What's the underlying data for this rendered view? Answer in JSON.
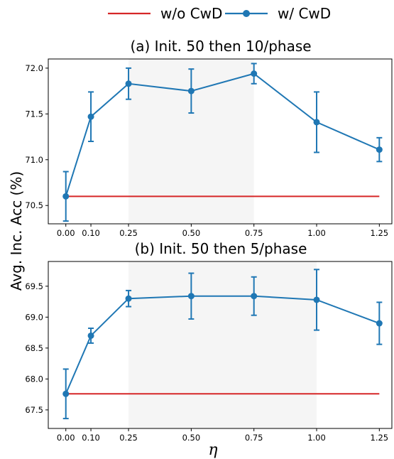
{
  "legend": {
    "items": [
      {
        "label": "w/o CwD",
        "color": "#d62728",
        "marker": false
      },
      {
        "label": "w/ CwD",
        "color": "#1f77b4",
        "marker": true
      }
    ],
    "placement": "top-center"
  },
  "ylabel": "Avg. Inc. Acc (%)",
  "xlabel": "η",
  "colors": {
    "with": "#1f77b4",
    "without": "#d62728",
    "shade": "#f5f5f5"
  },
  "chart_data": [
    {
      "type": "line",
      "title": "(a) Init. 50 then 10/phase",
      "x_ticks": [
        0.0,
        0.1,
        0.25,
        0.5,
        0.75,
        1.0,
        1.25
      ],
      "x_tick_labels": [
        "0.00",
        "0.10",
        "0.25",
        "0.50",
        "0.75",
        "1.00",
        "1.25"
      ],
      "y_ticks": [
        70.5,
        71.0,
        71.5,
        72.0
      ],
      "y_tick_labels": [
        "70.5",
        "71.0",
        "71.5",
        "72.0"
      ],
      "xlim": [
        -0.07,
        1.3
      ],
      "ylim": [
        70.3,
        72.1
      ],
      "shaded_x_range": [
        0.25,
        0.75
      ],
      "grid": false,
      "series": [
        {
          "name": "w/ CwD",
          "x": [
            0.0,
            0.1,
            0.25,
            0.5,
            0.75,
            1.0,
            1.25
          ],
          "values": [
            70.6,
            71.47,
            71.83,
            71.75,
            71.94,
            71.41,
            71.11
          ],
          "error_low": [
            70.33,
            71.2,
            71.66,
            71.51,
            71.83,
            71.08,
            70.98
          ],
          "error_high": [
            70.87,
            71.74,
            72.0,
            71.99,
            72.05,
            71.74,
            71.24
          ]
        },
        {
          "name": "w/o CwD",
          "x": [
            0.0,
            1.25
          ],
          "values": [
            70.6,
            70.6
          ]
        }
      ]
    },
    {
      "type": "line",
      "title": "(b) Init. 50 then 5/phase",
      "x_ticks": [
        0.0,
        0.1,
        0.25,
        0.5,
        0.75,
        1.0,
        1.25
      ],
      "x_tick_labels": [
        "0.00",
        "0.10",
        "0.25",
        "0.50",
        "0.75",
        "1.00",
        "1.25"
      ],
      "y_ticks": [
        67.5,
        68.0,
        68.5,
        69.0,
        69.5
      ],
      "y_tick_labels": [
        "67.5",
        "68.0",
        "68.5",
        "69.0",
        "69.5"
      ],
      "xlim": [
        -0.07,
        1.3
      ],
      "ylim": [
        67.2,
        69.9
      ],
      "shaded_x_range": [
        0.25,
        1.0
      ],
      "grid": false,
      "series": [
        {
          "name": "w/ CwD",
          "x": [
            0.0,
            0.1,
            0.25,
            0.5,
            0.75,
            1.0,
            1.25
          ],
          "values": [
            67.76,
            68.7,
            69.3,
            69.34,
            69.34,
            69.28,
            68.9
          ],
          "error_low": [
            67.36,
            68.58,
            69.17,
            68.97,
            69.03,
            68.79,
            68.56
          ],
          "error_high": [
            68.16,
            68.82,
            69.43,
            69.71,
            69.65,
            69.77,
            69.24
          ]
        },
        {
          "name": "w/o CwD",
          "x": [
            0.0,
            1.25
          ],
          "values": [
            67.76,
            67.76
          ]
        }
      ]
    }
  ]
}
